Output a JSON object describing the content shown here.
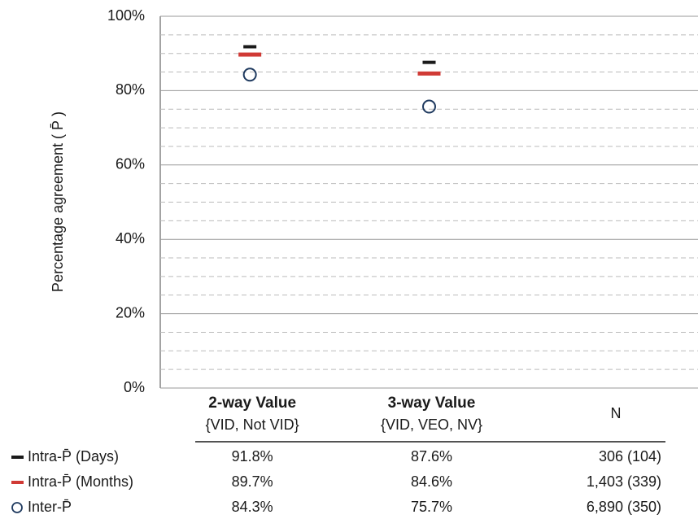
{
  "chart_data": {
    "type": "scatter",
    "y_label": "Percentage agreement ( P̄ )",
    "categories": [
      "2-way Value",
      "3-way Value"
    ],
    "category_subtitles": [
      "{VID, Not VID}",
      "{VID, VEO, NV}"
    ],
    "n_header": "N",
    "ylim": [
      0,
      100
    ],
    "yticks": [
      {
        "value": 0,
        "label": "0%"
      },
      {
        "value": 20,
        "label": "20%"
      },
      {
        "value": 40,
        "label": "40%"
      },
      {
        "value": 60,
        "label": "60%"
      },
      {
        "value": 80,
        "label": "80%"
      },
      {
        "value": 100,
        "label": "100%"
      }
    ],
    "yticks_minor": [
      5,
      10,
      15,
      25,
      30,
      35,
      45,
      50,
      55,
      65,
      70,
      75,
      85,
      90,
      95
    ],
    "grid": true,
    "series": [
      {
        "name": "Intra-P̄ (Days)",
        "color": "#1a1a1a",
        "marker": "dash",
        "values": [
          91.8,
          87.6
        ],
        "value_labels": [
          "91.8%",
          "87.6%"
        ],
        "n": "306 (104)"
      },
      {
        "name": "Intra-P̄ (Months)",
        "color": "#d03a35",
        "marker": "wide-dash",
        "values": [
          89.7,
          84.6
        ],
        "value_labels": [
          "89.7%",
          "84.6%"
        ],
        "n": "1,403 (339)"
      },
      {
        "name": "Inter-P̄",
        "color": "#1f3a5f",
        "marker": "circle",
        "values": [
          84.3,
          75.7
        ],
        "value_labels": [
          "84.3%",
          "75.7%"
        ],
        "n": "6,890 (350)"
      }
    ]
  }
}
